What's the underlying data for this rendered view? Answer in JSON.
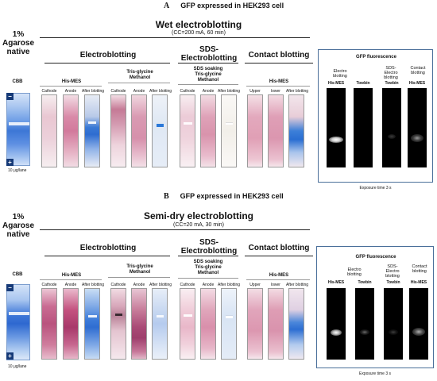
{
  "panel_a": {
    "letter": "A",
    "title": "GFP expressed in HEK293 cell",
    "method_title": "Wet electroblotting",
    "condition": "(CC=200 mA, 60 min)",
    "native_title_1": "1%",
    "native_title_2": "Agarose",
    "native_title_3": "native",
    "cbb": "CBB",
    "loading": "10 μg/lane",
    "sections": {
      "electro": "Electroblotting",
      "sds": "SDS-",
      "sds2": "Electroblotting",
      "contact": "Contact blotting"
    },
    "buffers": {
      "his_mes": "His-MES",
      "tris1": "Tris-glycine",
      "tris2": "Methanol",
      "sds_soak1": "SDS soaking",
      "sds_soak2": "Tris-glycine",
      "sds_soak3": "Methanol",
      "contact_his": "His-MES"
    },
    "lanes": {
      "cathode": "Cathode",
      "anode": "Anode",
      "after": "After blotting",
      "upper": "Upper",
      "lower": "lower"
    },
    "fluo": {
      "title": "GFP fluorescence",
      "g1a": "Electro",
      "g1b": "blotting",
      "g2a": "SDS-",
      "g2b": "Electro",
      "g2c": "blotting",
      "g3a": "Contact",
      "g3b": "blotting",
      "l1": "His-MES",
      "l2": "Towbin",
      "l3": "Towbin",
      "l4": "His-MES",
      "exposure": "Exposure time  3 s"
    }
  },
  "panel_b": {
    "letter": "B",
    "title": "GFP expressed in HEK293 cell",
    "method_title": "Semi-dry electroblotting",
    "condition": "(CC=20 mA, 30 min)",
    "native_title_1": "1%",
    "native_title_2": "Agarose",
    "native_title_3": "native",
    "cbb": "CBB",
    "loading": "10 μg/lane",
    "sections": {
      "electro": "Electroblotting",
      "sds": "SDS-",
      "sds2": "Electroblotting",
      "contact": "Contact blotting"
    },
    "buffers": {
      "his_mes": "His-MES",
      "tris1": "Tris-glycine",
      "tris2": "Methanol",
      "sds_soak1": "SDS soaking",
      "sds_soak2": "Tris-glycine",
      "sds_soak3": "Methanol",
      "contact_his": "His-MES"
    },
    "lanes": {
      "cathode": "Cathode",
      "anode": "Anode",
      "after": "After blotting",
      "upper": "Upper",
      "lower": "lower"
    },
    "fluo": {
      "title": "GFP fluorescence",
      "g1a": "Electro",
      "g1b": "blotting",
      "g2a": "SDS-",
      "g2b": "Electro",
      "g2c": "blotting",
      "g3a": "Contact",
      "g3b": "blotting",
      "l1": "His-MES",
      "l2": "Towbin",
      "l3": "Towbin",
      "l4": "His-MES",
      "exposure": "Exposure time  3 s"
    }
  },
  "electrode_minus": "−",
  "electrode_plus": "+",
  "colors": {
    "cbb_blue": "#2a63c8",
    "ponceau": "#c8577e",
    "fluo_bg": "#000000",
    "frame": "#4a6f9a"
  }
}
